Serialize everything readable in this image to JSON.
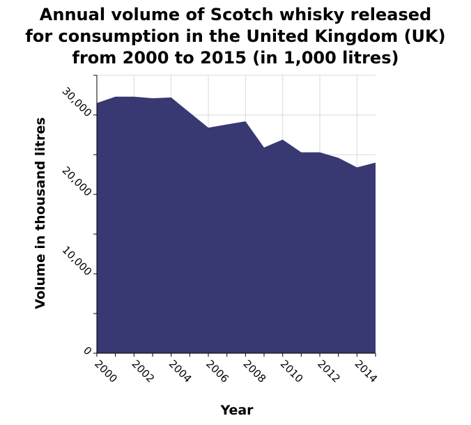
{
  "chart_data": {
    "type": "area",
    "title_lines": [
      "Annual volume of Scotch whisky released",
      "for consumption in the United Kingdom (UK)",
      "from 2000 to 2015 (in 1,000 litres)"
    ],
    "xlabel": "Year",
    "ylabel": "Volume in thousand litres",
    "x": [
      2000,
      2001,
      2002,
      2003,
      2004,
      2005,
      2006,
      2007,
      2008,
      2009,
      2010,
      2011,
      2012,
      2013,
      2014,
      2015
    ],
    "values": [
      31500,
      32300,
      32300,
      32100,
      32200,
      30300,
      28400,
      28800,
      29200,
      25900,
      26900,
      25300,
      25300,
      24600,
      23400,
      24000
    ],
    "xlim": [
      2000,
      2015
    ],
    "ylim": [
      0,
      35000
    ],
    "x_ticks": [
      "2000",
      "2002",
      "2004",
      "2006",
      "2008",
      "2010",
      "2012",
      "2014"
    ],
    "y_ticks": [
      "0",
      "10,000",
      "20,000",
      "30,000"
    ],
    "fill_color": "#383872",
    "grid": true
  }
}
